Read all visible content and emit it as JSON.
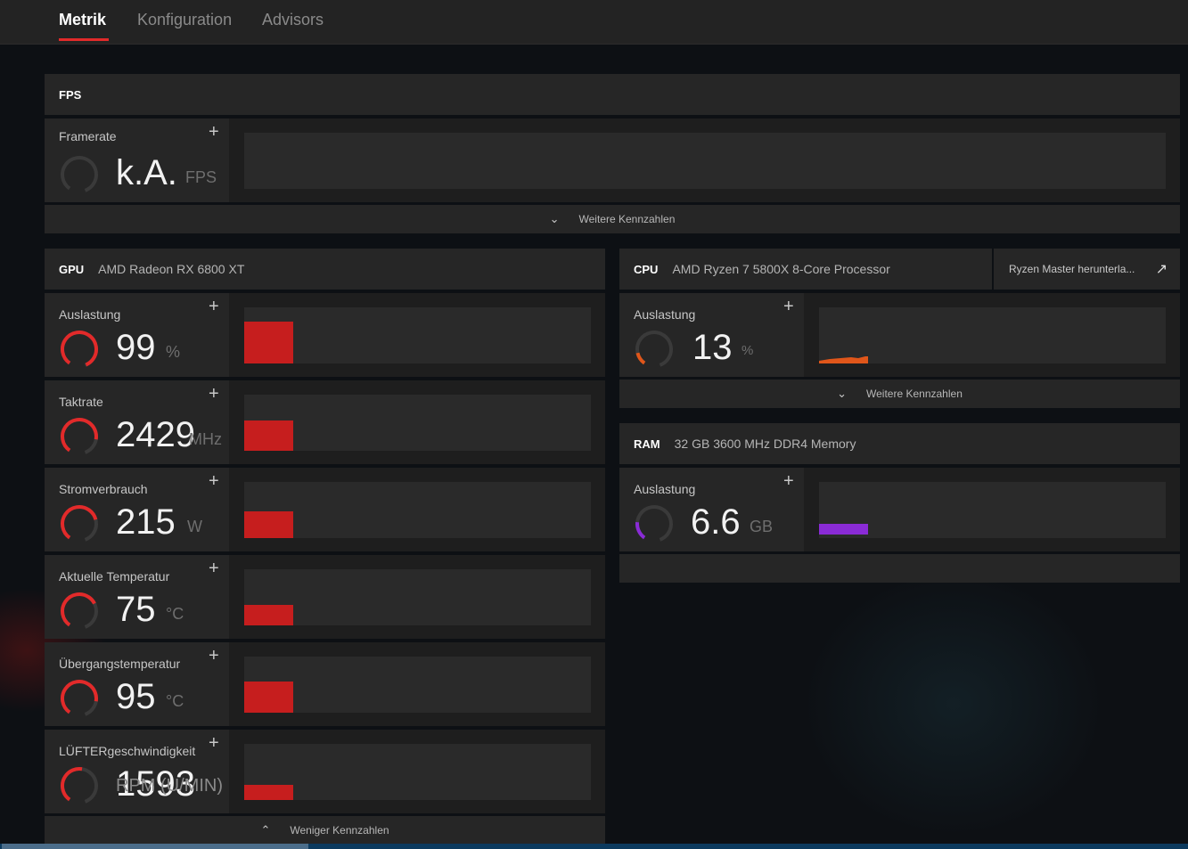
{
  "nav": {
    "tabs": [
      "Metrik",
      "Konfiguration",
      "Advisors"
    ],
    "active": "Metrik"
  },
  "fps": {
    "title": "FPS",
    "metric": {
      "label": "Framerate",
      "value": "k.A.",
      "unit": "FPS"
    },
    "more": "Weitere Kennzahlen"
  },
  "gpu": {
    "key": "GPU",
    "name": "AMD Radeon RX 6800 XT",
    "metrics": [
      {
        "label": "Auslastung",
        "value": "99",
        "unit": "%",
        "gauge": 0.99
      },
      {
        "label": "Taktrate",
        "value": "2429",
        "unit": "MHz",
        "gauge": 0.8
      },
      {
        "label": "Stromverbrauch",
        "value": "215",
        "unit": "W",
        "gauge": 0.72
      },
      {
        "label": "Aktuelle Temperatur",
        "value": "75",
        "unit": "°C",
        "gauge": 0.68
      },
      {
        "label": "Übergangstemperatur",
        "value": "95",
        "unit": "°C",
        "gauge": 0.8
      },
      {
        "label": "LÜFTERgeschwindigkeit",
        "value": "1593",
        "unit": "RPM (U/MIN)",
        "gauge": 0.5
      }
    ],
    "less": "Weniger Kennzahlen"
  },
  "cpu": {
    "key": "CPU",
    "name": "AMD Ryzen 7 5800X 8-Core Processor",
    "link": "Ryzen Master herunterla...",
    "metric": {
      "label": "Auslastung",
      "value": "13",
      "unit": "%",
      "gauge": 0.13
    },
    "more": "Weitere Kennzahlen"
  },
  "ram": {
    "key": "RAM",
    "name": "32 GB 3600 MHz DDR4 Memory",
    "metric": {
      "label": "Auslastung",
      "value": "6.6",
      "unit": "GB",
      "gauge": 0.2
    }
  },
  "colors": {
    "accent": "#e22a2a",
    "gpu_bar": "#c61e1e",
    "cpu": "#e0561a",
    "ram": "#8a2bd6",
    "gauge_track": "#3a3a3a"
  },
  "icons": {
    "plus": "plus-icon",
    "chevron_down": "chevron-down-icon",
    "chevron_up": "chevron-up-icon",
    "external": "external-link-icon"
  }
}
